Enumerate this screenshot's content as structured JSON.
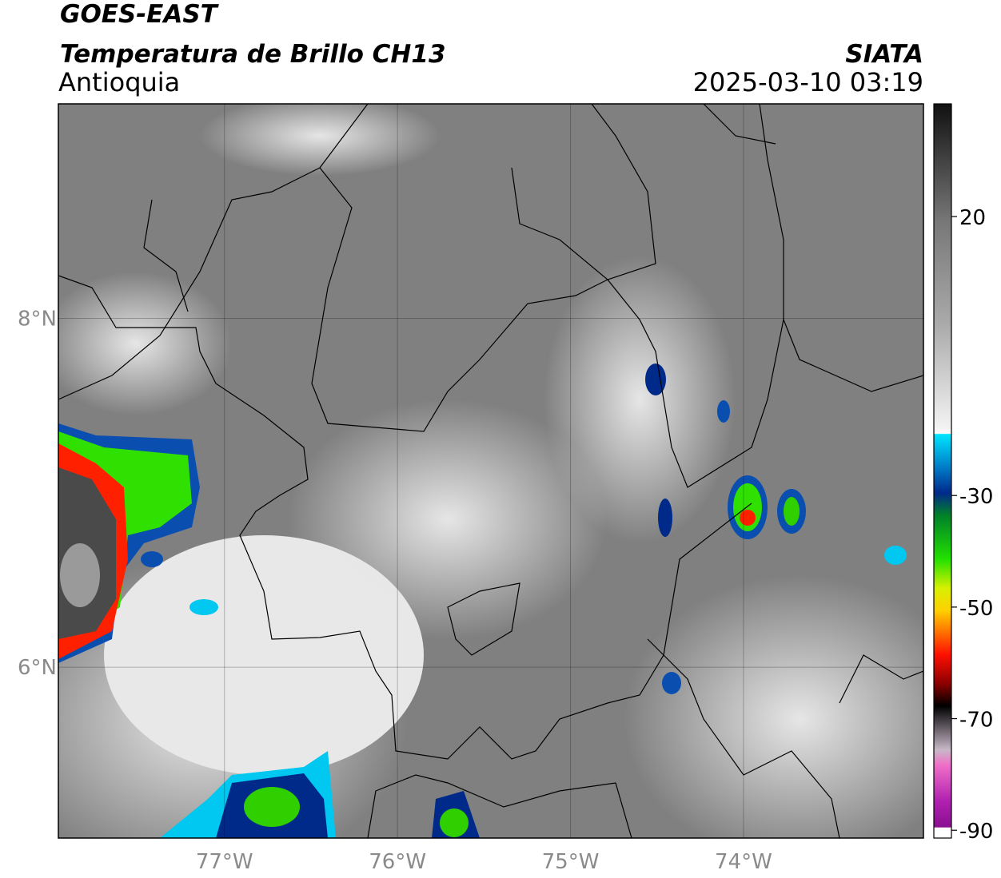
{
  "header": {
    "title": "GOES-EAST",
    "subtitle": "Temperatura de Brillo CH13",
    "region": "Antioquia",
    "source": "SIATA",
    "datetime": "2025-03-10 03:19"
  },
  "map": {
    "lon_range": [
      -77.96,
      -72.96
    ],
    "lat_range": [
      5.02,
      9.23
    ],
    "lon_ticks": [
      {
        "value": -77,
        "label": "77°W"
      },
      {
        "value": -76,
        "label": "76°W"
      },
      {
        "value": -75,
        "label": "75°W"
      },
      {
        "value": -74,
        "label": "74°W"
      }
    ],
    "lat_ticks": [
      {
        "value": 8,
        "label": "8°N"
      },
      {
        "value": 6,
        "label": "6°N"
      }
    ]
  },
  "colorbar": {
    "range": [
      -91.4,
      40.2
    ],
    "ticks": [
      20,
      -30,
      -50,
      -70,
      -90
    ]
  }
}
